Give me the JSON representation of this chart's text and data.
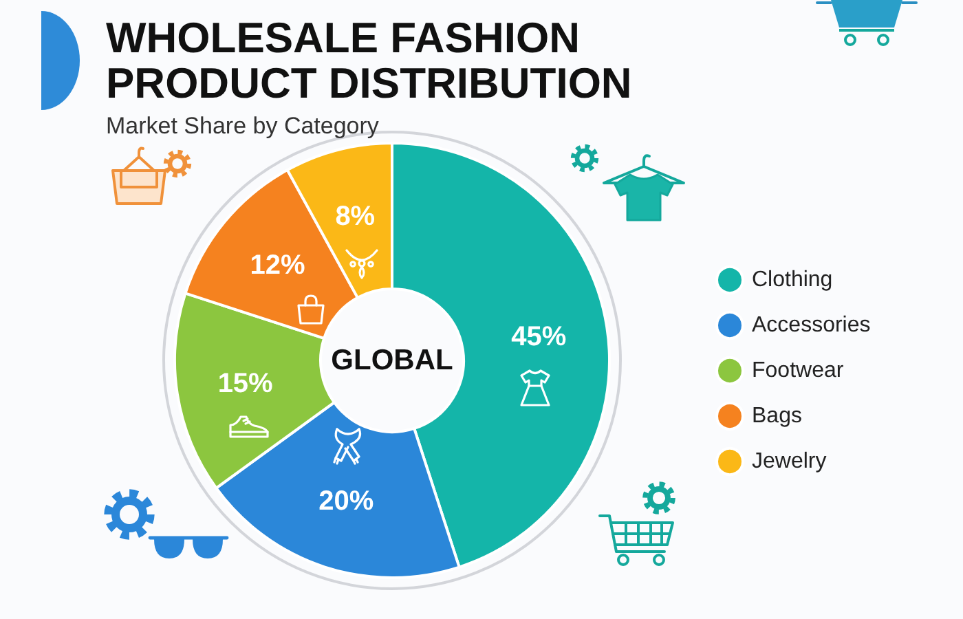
{
  "chart_data": {
    "type": "donut",
    "title": "WHOLESALE FASHION PRODUCT DISTRIBUTION",
    "subtitle": "Market Share by Category",
    "categories": [
      "Clothing",
      "Accessories",
      "Footwear",
      "Bags",
      "Jewelry"
    ],
    "values": [
      45,
      20,
      15,
      12,
      8
    ],
    "colors": [
      "#14b5a9",
      "#2b87d9",
      "#8cc63f",
      "#f5821f",
      "#fbb817"
    ],
    "value_labels": [
      "45%",
      "20%",
      "15%",
      "12%",
      "8%"
    ],
    "annotations": [
      "GLOBAL"
    ],
    "legend": "right"
  }
}
